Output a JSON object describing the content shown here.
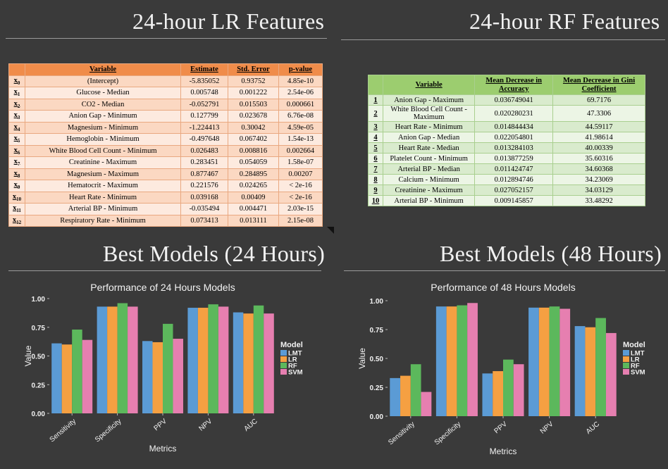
{
  "titles": {
    "lr": "24-hour LR Features",
    "rf": "24-hour RF Features",
    "best24": "Best Models (24 Hours)",
    "best48": "Best Models (48 Hours)"
  },
  "lr_table": {
    "headers": [
      "",
      "Variable",
      "Estimate",
      "Std. Error",
      "p-value"
    ],
    "rows": [
      {
        "x": "0",
        "variable": "(Intercept)",
        "estimate": "-5.835052",
        "se": "0.93752",
        "p": "4.85e-10"
      },
      {
        "x": "1",
        "variable": "Glucose - Median",
        "estimate": "0.005748",
        "se": "0.001222",
        "p": "2.54e-06"
      },
      {
        "x": "2",
        "variable": "CO2 - Median",
        "estimate": "-0.052791",
        "se": "0.015503",
        "p": "0.000661"
      },
      {
        "x": "3",
        "variable": "Anion Gap - Minimum",
        "estimate": "0.127799",
        "se": "0.023678",
        "p": "6.76e-08"
      },
      {
        "x": "4",
        "variable": "Magnesium - Minimum",
        "estimate": "-1.224413",
        "se": "0.30042",
        "p": "4.59e-05"
      },
      {
        "x": "5",
        "variable": "Hemoglobin - Minimum",
        "estimate": "-0.497648",
        "se": "0.067402",
        "p": "1.54e-13"
      },
      {
        "x": "6",
        "variable": "White Blood Cell Count - Minimum",
        "estimate": "0.026483",
        "se": "0.008816",
        "p": "0.002664"
      },
      {
        "x": "7",
        "variable": "Creatinine - Maximum",
        "estimate": "0.283451",
        "se": "0.054059",
        "p": "1.58e-07"
      },
      {
        "x": "8",
        "variable": "Magnesium - Maximum",
        "estimate": "0.877467",
        "se": "0.284895",
        "p": "0.00207"
      },
      {
        "x": "9",
        "variable": "Hematocrit - Maximum",
        "estimate": "0.221576",
        "se": "0.024265",
        "p": "< 2e-16"
      },
      {
        "x": "10",
        "variable": "Heart Rate - Minimum",
        "estimate": "0.039168",
        "se": "0.00409",
        "p": "< 2e-16"
      },
      {
        "x": "11",
        "variable": "Arterial BP - Minimum",
        "estimate": "-0.035494",
        "se": "0.004471",
        "p": "2.03e-15"
      },
      {
        "x": "12",
        "variable": "Respiratory Rate - Minimum",
        "estimate": "0.073413",
        "se": "0.013111",
        "p": "2.15e-08"
      }
    ]
  },
  "rf_table": {
    "headers": [
      "",
      "Variable",
      "Mean Decrease in Accuracy",
      "Mean Decrease in Gini Coefficient"
    ],
    "rows": [
      {
        "n": "1",
        "variable": "Anion Gap - Maximum",
        "acc": "0.036749041",
        "gini": "69.7176"
      },
      {
        "n": "2",
        "variable": "White Blood Cell Count - Maximum",
        "acc": "0.020280231",
        "gini": "47.3306"
      },
      {
        "n": "3",
        "variable": "Heart Rate - Minimum",
        "acc": "0.014844434",
        "gini": "44.59117"
      },
      {
        "n": "4",
        "variable": "Anion Gap - Median",
        "acc": "0.022054801",
        "gini": "41.98614"
      },
      {
        "n": "5",
        "variable": "Heart Rate - Median",
        "acc": "0.013284103",
        "gini": "40.00339"
      },
      {
        "n": "6",
        "variable": "Platelet Count - Minimum",
        "acc": "0.013877259",
        "gini": "35.60316"
      },
      {
        "n": "7",
        "variable": "Arterial BP - Median",
        "acc": "0.011424747",
        "gini": "34.60368"
      },
      {
        "n": "8",
        "variable": "Calcium - Minimum",
        "acc": "0.012894746",
        "gini": "34.23069"
      },
      {
        "n": "9",
        "variable": "Creatinine - Maximum",
        "acc": "0.027052157",
        "gini": "34.03129"
      },
      {
        "n": "10",
        "variable": "Arterial BP - Minimum",
        "acc": "0.009145857",
        "gini": "33.48292"
      }
    ]
  },
  "colors": {
    "LMT": "#5b9bd5",
    "LR": "#f5a042",
    "RF": "#5cb85c",
    "SVM": "#e67fb0",
    "text": "#f2f2f2"
  },
  "chart_data": [
    {
      "type": "bar",
      "title": "Performance of 24 Hours Models",
      "xlabel": "Metrics",
      "ylabel": "Value",
      "categories": [
        "Sensitivity",
        "Specificity",
        "PPV",
        "NPV",
        "AUC"
      ],
      "ylim": [
        0,
        1
      ],
      "yticks": [
        "0.00",
        "0.25",
        "0.50",
        "0.75",
        "1.00"
      ],
      "legend_title": "Model",
      "series": [
        {
          "name": "LMT",
          "values": [
            0.61,
            0.93,
            0.63,
            0.92,
            0.88
          ]
        },
        {
          "name": "LR",
          "values": [
            0.6,
            0.93,
            0.62,
            0.92,
            0.87
          ]
        },
        {
          "name": "RF",
          "values": [
            0.73,
            0.96,
            0.78,
            0.95,
            0.94
          ]
        },
        {
          "name": "SVM",
          "values": [
            0.64,
            0.93,
            0.65,
            0.93,
            0.87
          ]
        }
      ]
    },
    {
      "type": "bar",
      "title": "Performance of 48 Hours Models",
      "xlabel": "Metrics",
      "ylabel": "Value",
      "categories": [
        "Sensitivity",
        "Specificity",
        "PPV",
        "NPV",
        "AUC"
      ],
      "ylim": [
        0,
        1
      ],
      "yticks": [
        "0.00",
        "0.25",
        "0.50",
        "0.75",
        "1.00"
      ],
      "legend_title": "Model",
      "series": [
        {
          "name": "LMT",
          "values": [
            0.33,
            0.95,
            0.37,
            0.94,
            0.78
          ]
        },
        {
          "name": "LR",
          "values": [
            0.35,
            0.95,
            0.39,
            0.94,
            0.77
          ]
        },
        {
          "name": "RF",
          "values": [
            0.45,
            0.96,
            0.49,
            0.95,
            0.85
          ]
        },
        {
          "name": "SVM",
          "values": [
            0.21,
            0.98,
            0.45,
            0.93,
            0.72
          ]
        }
      ]
    }
  ]
}
